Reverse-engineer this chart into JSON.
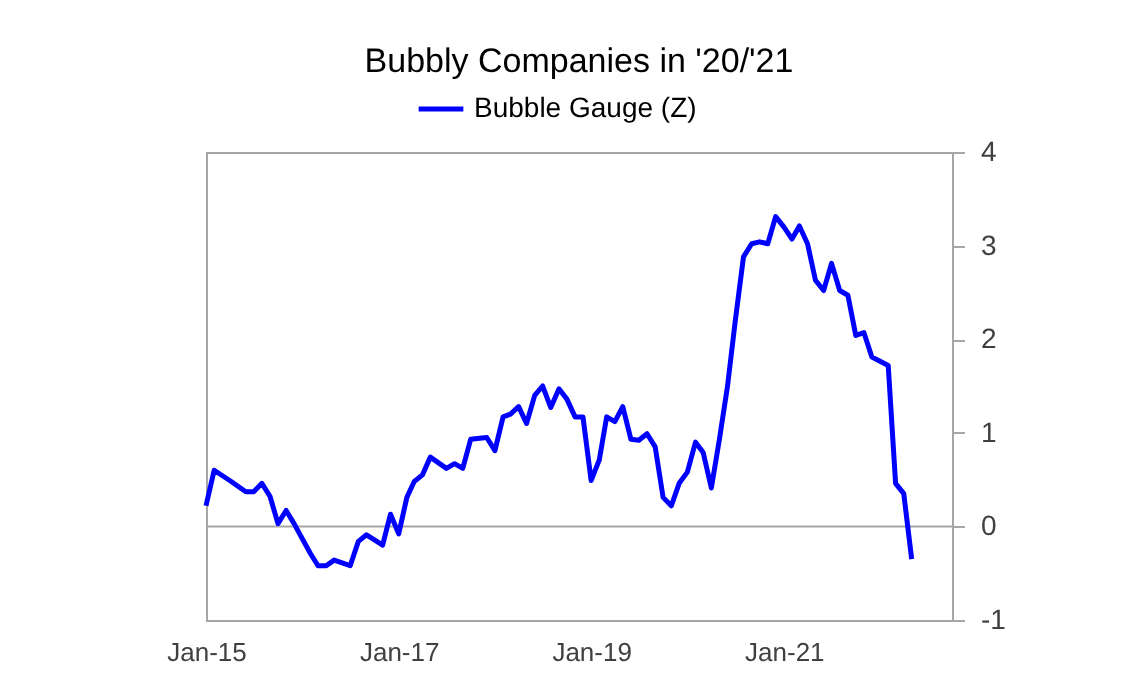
{
  "chart_data": {
    "type": "line",
    "title": "Bubbly Companies in '20/'21",
    "x": [
      "2015-01",
      "2015-02",
      "2015-04",
      "2015-06",
      "2015-07",
      "2015-08",
      "2015-09",
      "2015-10",
      "2015-11",
      "2015-12",
      "2016-02",
      "2016-03",
      "2016-04",
      "2016-05",
      "2016-07",
      "2016-08",
      "2016-09",
      "2016-11",
      "2016-12",
      "2017-01",
      "2017-02",
      "2017-03",
      "2017-04",
      "2017-05",
      "2017-07",
      "2017-08",
      "2017-09",
      "2017-10",
      "2017-12",
      "2018-01",
      "2018-02",
      "2018-03",
      "2018-04",
      "2018-05",
      "2018-06",
      "2018-07",
      "2018-08",
      "2018-09",
      "2018-10",
      "2018-11",
      "2018-12",
      "2019-01",
      "2019-02",
      "2019-03",
      "2019-04",
      "2019-05",
      "2019-06",
      "2019-07",
      "2019-08",
      "2019-09",
      "2019-10",
      "2019-11",
      "2019-12",
      "2020-01",
      "2020-02",
      "2020-03",
      "2020-04",
      "2020-05",
      "2020-06",
      "2020-07",
      "2020-08",
      "2020-09",
      "2020-10",
      "2020-11",
      "2020-12",
      "2021-01",
      "2021-02",
      "2021-03",
      "2021-04",
      "2021-05",
      "2021-06",
      "2021-07",
      "2021-08",
      "2021-09",
      "2021-10",
      "2021-11",
      "2021-12",
      "2022-02",
      "2022-03",
      "2022-04",
      "2022-05"
    ],
    "series": [
      {
        "name": "Bubble Gauge (Z)",
        "color": "#0000ff",
        "values": [
          0.22,
          0.6,
          0.49,
          0.37,
          0.37,
          0.46,
          0.32,
          0.03,
          0.17,
          0.03,
          -0.29,
          -0.42,
          -0.42,
          -0.36,
          -0.42,
          -0.16,
          -0.09,
          -0.2,
          0.13,
          -0.08,
          0.31,
          0.48,
          0.55,
          0.74,
          0.62,
          0.67,
          0.62,
          0.93,
          0.95,
          0.81,
          1.17,
          1.2,
          1.28,
          1.1,
          1.4,
          1.5,
          1.27,
          1.47,
          1.36,
          1.17,
          1.17,
          0.49,
          0.71,
          1.17,
          1.12,
          1.28,
          0.93,
          0.92,
          0.99,
          0.85,
          0.31,
          0.22,
          0.46,
          0.58,
          0.9,
          0.79,
          0.41,
          0.92,
          1.49,
          2.2,
          2.88,
          3.02,
          3.04,
          3.02,
          3.31,
          3.2,
          3.07,
          3.21,
          3.02,
          2.63,
          2.52,
          2.81,
          2.52,
          2.47,
          2.04,
          2.07,
          1.81,
          1.72,
          0.46,
          0.35,
          -0.35
        ]
      }
    ],
    "xlim": [
      "2015-01",
      "2022-10"
    ],
    "xticks": [
      {
        "value": "2015-01",
        "label": "Jan-15"
      },
      {
        "value": "2017-01",
        "label": "Jan-17"
      },
      {
        "value": "2019-01",
        "label": "Jan-19"
      },
      {
        "value": "2021-01",
        "label": "Jan-21"
      }
    ],
    "ylim": [
      -1,
      4
    ],
    "yticks": [
      -1,
      0,
      1,
      2,
      3,
      4
    ],
    "ref_lines": [
      {
        "axis": "y",
        "value": 0,
        "color": "#a6a6a6"
      }
    ],
    "grid": false,
    "legend": "top",
    "marker": "none",
    "line_style": "solid"
  }
}
